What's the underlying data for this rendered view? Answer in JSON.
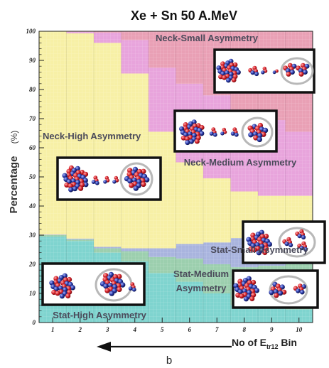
{
  "chart_data": {
    "type": "area",
    "title": "Xe + Sn 50 A.MeV",
    "ylabel": "Percentage",
    "ylabel_unit": "(%)",
    "xlabel_prefix": "No of E",
    "xlabel_subscript": "tr12",
    "xlabel_suffix": " Bin",
    "ylim": [
      0,
      100
    ],
    "xlim": [
      0.5,
      10.5
    ],
    "yticks": [
      0,
      10,
      20,
      30,
      40,
      50,
      60,
      70,
      80,
      90,
      100
    ],
    "xticks": [
      1,
      2,
      3,
      4,
      5,
      6,
      7,
      8,
      9,
      10
    ],
    "stacking": "cumulative_from_bottom",
    "series": [
      {
        "name": "Stat-High Asymmetry",
        "color": "#7fd4cf",
        "values": [
          29.5,
          28,
          24,
          21,
          17,
          14,
          10,
          6,
          5,
          4.5
        ]
      },
      {
        "name": "Stat-Medium Asymmetry",
        "color": "#9ccfae",
        "values": [
          0.5,
          0.5,
          1.5,
          3.5,
          5.5,
          8,
          10,
          13,
          14.5,
          15.5
        ]
      },
      {
        "name": "Stat-Small Asymmetry",
        "color": "#a9b4de",
        "values": [
          0.2,
          0.3,
          0.5,
          1,
          3,
          5,
          7.5,
          10,
          12,
          13.5
        ]
      },
      {
        "name": "Neck-High Asymmetry",
        "color": "#f7f0a6",
        "values": [
          69.8,
          70.5,
          70,
          60,
          40,
          28,
          22,
          16,
          12,
          10
        ]
      },
      {
        "name": "Neck-Medium Asymmetry",
        "color": "#e8a4dc",
        "values": [
          0,
          0.5,
          3.5,
          11.5,
          22,
          27,
          28.5,
          28,
          26,
          22
        ]
      },
      {
        "name": "Neck-Small Asymmetry",
        "color": "#e9a0b5",
        "values": [
          0,
          0.2,
          0.5,
          3,
          12.5,
          18,
          22,
          27,
          30.5,
          34.5
        ]
      }
    ],
    "region_labels": [
      "Neck-Small Asymmetry",
      "Neck-High Asymmetry",
      "Neck-Medium Asymmetry",
      "Stat-Small Asymmetry",
      "Stat-Medium",
      "Asymmetry",
      "Stat-High Asymmetry"
    ],
    "arrow_label": "b",
    "inset_count": 6
  }
}
